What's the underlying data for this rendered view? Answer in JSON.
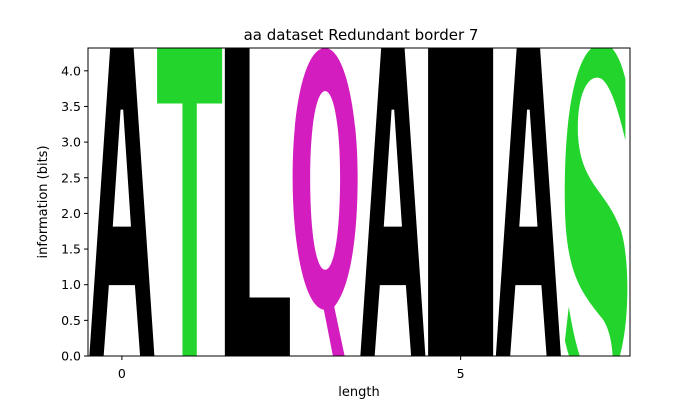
{
  "chart_data": {
    "type": "logo",
    "title": "aa dataset Redundant border 7",
    "xlabel": "length",
    "ylabel": "information (bits)",
    "xlim": [
      -0.5,
      7.5
    ],
    "ylim": [
      0,
      4.32
    ],
    "xticks": [
      0,
      5
    ],
    "yticks": [
      0.0,
      0.5,
      1.0,
      1.5,
      2.0,
      2.5,
      3.0,
      3.5,
      4.0
    ],
    "grid": false,
    "colors": {
      "A": "#000000",
      "I": "#000000",
      "L": "#000000",
      "T": "#22d42b",
      "S": "#22d42b",
      "Q": "#d41dbf"
    },
    "positions": [
      {
        "pos": 0,
        "letter": "A",
        "bits": 4.32
      },
      {
        "pos": 1,
        "letter": "T",
        "bits": 4.32
      },
      {
        "pos": 2,
        "letter": "L",
        "bits": 4.32
      },
      {
        "pos": 3,
        "letter": "Q",
        "bits": 4.32
      },
      {
        "pos": 4,
        "letter": "A",
        "bits": 4.32
      },
      {
        "pos": 5,
        "letter": "I",
        "bits": 4.32
      },
      {
        "pos": 6,
        "letter": "A",
        "bits": 4.32
      },
      {
        "pos": 7,
        "letter": "S",
        "bits": 4.32
      }
    ]
  }
}
